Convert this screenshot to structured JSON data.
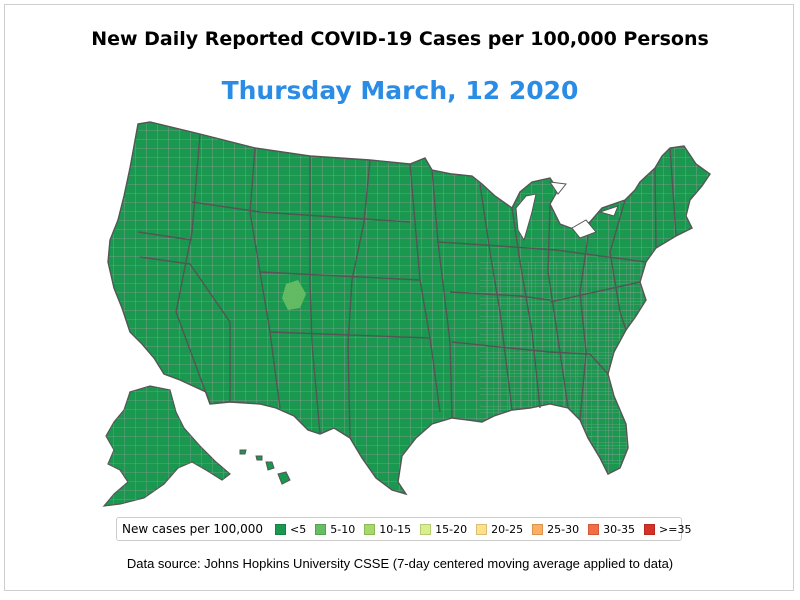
{
  "title": "New Daily Reported COVID-19 Cases per 100,000 Persons",
  "date": "Thursday March, 12  2020",
  "legend": {
    "title": "New cases per 100,000",
    "items": [
      {
        "label": "<5",
        "color": "#1a9850"
      },
      {
        "label": "5-10",
        "color": "#66bd63"
      },
      {
        "label": "10-15",
        "color": "#a6d96a"
      },
      {
        "label": "15-20",
        "color": "#d9ef8b"
      },
      {
        "label": "20-25",
        "color": "#fee08b"
      },
      {
        "label": "25-30",
        "color": "#fdae61"
      },
      {
        "label": "30-35",
        "color": "#f46d43"
      },
      {
        "label": ">=35",
        "color": "#d73027"
      }
    ]
  },
  "source": "Data source: Johns Hopkins University CSSE (7-day centered moving average applied to data)",
  "map": {
    "fill_color": "#1a9850",
    "highlight_color": "#66bd63",
    "county_line_color": "#9e9e9e",
    "state_line_color": "#555555"
  }
}
